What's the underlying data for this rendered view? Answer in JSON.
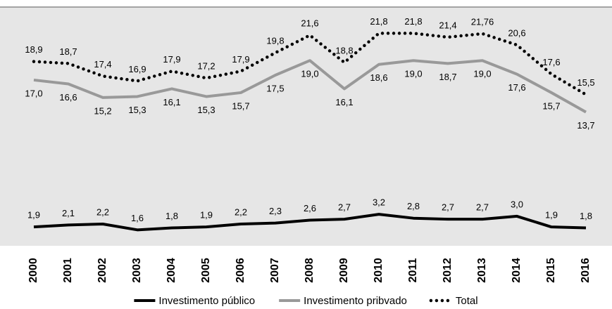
{
  "chart_data": {
    "type": "line",
    "categories": [
      "2000",
      "2001",
      "2002",
      "2003",
      "2004",
      "2005",
      "2006",
      "2007",
      "2008",
      "2009",
      "2010",
      "2011",
      "2012",
      "2013",
      "2014",
      "2015",
      "2016"
    ],
    "ylim": [
      0,
      24.5
    ],
    "legend": "bottom",
    "series": [
      {
        "name": "Investimento público",
        "color": "#000000",
        "line_style": "solid",
        "label_position": "above",
        "values": [
          1.9,
          2.1,
          2.2,
          1.6,
          1.8,
          1.9,
          2.2,
          2.3,
          2.6,
          2.7,
          3.2,
          2.8,
          2.7,
          2.7,
          3.0,
          1.9,
          1.8
        ],
        "value_labels": [
          "1,9",
          "2,1",
          "2,2",
          "1,6",
          "1,8",
          "1,9",
          "2,2",
          "2,3",
          "2,6",
          "2,7",
          "3,2",
          "2,8",
          "2,7",
          "2,7",
          "3,0",
          "1,9",
          "1,8"
        ]
      },
      {
        "name": "Investimento pribvado",
        "color": "#999999",
        "line_style": "solid",
        "label_position": "below",
        "values": [
          17.0,
          16.6,
          15.2,
          15.3,
          16.1,
          15.3,
          15.7,
          17.5,
          19.0,
          16.1,
          18.6,
          19.0,
          18.7,
          19.0,
          17.6,
          15.7,
          13.7
        ],
        "value_labels": [
          "17,0",
          "16,6",
          "15,2",
          "15,3",
          "16,1",
          "15,3",
          "15,7",
          "17,5",
          "19,0",
          "16,1",
          "18,6",
          "19,0",
          "18,7",
          "19,0",
          "17,6",
          "15,7",
          "13,7"
        ]
      },
      {
        "name": "Total",
        "color": "#000000",
        "line_style": "dotted",
        "label_position": "above",
        "values": [
          18.9,
          18.7,
          17.4,
          16.9,
          17.9,
          17.2,
          17.9,
          19.8,
          21.6,
          18.8,
          21.8,
          21.8,
          21.4,
          21.76,
          20.6,
          17.6,
          15.5
        ],
        "value_labels": [
          "18,9",
          "18,7",
          "17,4",
          "16,9",
          "17,9",
          "17,2",
          "17,9",
          "19,8",
          "21,6",
          "18,8",
          "21,8",
          "21,8",
          "21,4",
          "21,76",
          "20,6",
          "17,6",
          "15,5"
        ]
      }
    ]
  }
}
